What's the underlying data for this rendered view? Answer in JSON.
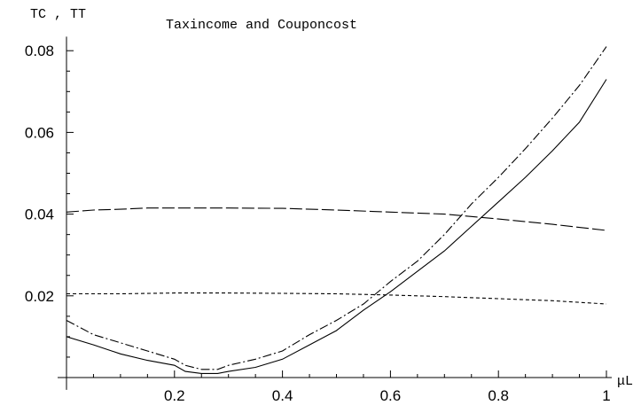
{
  "chart_data": {
    "type": "line",
    "title": "Taxincome    and  Couponcost",
    "xlabel": "μL",
    "ylabel": "TC , TT",
    "xlim": [
      0.0,
      1.0
    ],
    "ylim": [
      -0.003,
      0.083
    ],
    "x_ticks": [
      0.2,
      0.4,
      0.6,
      0.8,
      1.0
    ],
    "x_tick_labels": [
      "0.2",
      "0.4",
      "0.6",
      "0.8",
      "1"
    ],
    "y_ticks": [
      0.02,
      0.04,
      0.06,
      0.08
    ],
    "y_tick_labels": [
      "0.02",
      "0.04",
      "0.06",
      "0.08"
    ],
    "grid": false,
    "legend": "none",
    "series": [
      {
        "style": "solid",
        "x": [
          0.0,
          0.05,
          0.1,
          0.15,
          0.2,
          0.22,
          0.25,
          0.28,
          0.3,
          0.35,
          0.4,
          0.45,
          0.5,
          0.55,
          0.6,
          0.65,
          0.7,
          0.75,
          0.8,
          0.85,
          0.9,
          0.95,
          1.0
        ],
        "y": [
          0.01,
          0.008,
          0.0058,
          0.0042,
          0.003,
          0.0015,
          0.001,
          0.001,
          0.0015,
          0.0025,
          0.0045,
          0.008,
          0.0115,
          0.0165,
          0.021,
          0.026,
          0.031,
          0.037,
          0.043,
          0.049,
          0.0555,
          0.0625,
          0.073
        ]
      },
      {
        "style": "dash-dot",
        "x": [
          0.0,
          0.05,
          0.1,
          0.15,
          0.2,
          0.22,
          0.25,
          0.28,
          0.3,
          0.35,
          0.4,
          0.45,
          0.5,
          0.55,
          0.6,
          0.65,
          0.7,
          0.75,
          0.8,
          0.85,
          0.9,
          0.95,
          1.0
        ],
        "y": [
          0.014,
          0.0105,
          0.0085,
          0.0065,
          0.0045,
          0.003,
          0.002,
          0.002,
          0.003,
          0.0045,
          0.0065,
          0.0105,
          0.014,
          0.018,
          0.0235,
          0.0285,
          0.035,
          0.0425,
          0.049,
          0.056,
          0.0635,
          0.0715,
          0.081
        ]
      },
      {
        "style": "long-dash",
        "x": [
          0.0,
          0.05,
          0.1,
          0.15,
          0.2,
          0.3,
          0.4,
          0.5,
          0.6,
          0.7,
          0.8,
          0.9,
          1.0
        ],
        "y": [
          0.0405,
          0.041,
          0.0412,
          0.0415,
          0.0415,
          0.0415,
          0.0414,
          0.041,
          0.0405,
          0.04,
          0.0388,
          0.0375,
          0.036
        ]
      },
      {
        "style": "short-dash",
        "x": [
          0.0,
          0.1,
          0.2,
          0.3,
          0.4,
          0.5,
          0.6,
          0.7,
          0.8,
          0.9,
          1.0
        ],
        "y": [
          0.0205,
          0.0205,
          0.0207,
          0.0207,
          0.0206,
          0.0205,
          0.0202,
          0.0198,
          0.0193,
          0.0188,
          0.018
        ]
      }
    ]
  }
}
